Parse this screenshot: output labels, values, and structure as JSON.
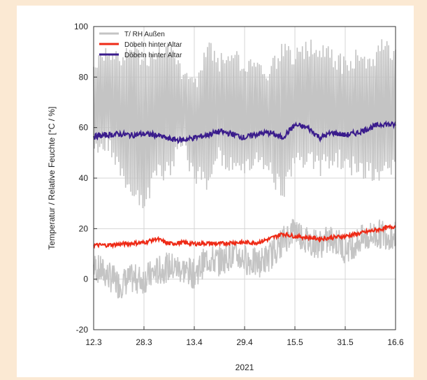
{
  "colors": {
    "background": "#fbe9d3",
    "panel": "#ffffff",
    "outside_series": "#c4c4c4",
    "temperature_series": "#ee2a16",
    "humidity_series": "#3a1c8c",
    "grid": "#d6d6d6"
  },
  "chart_data": {
    "type": "line",
    "title": "",
    "xlabel": "2021",
    "ylabel": "Temperatur / Relative Feuchte [°C / %]",
    "ylim": [
      -20,
      100
    ],
    "yticks": [
      -20,
      0,
      20,
      40,
      60,
      80,
      100
    ],
    "x_tick_labels": [
      "12.3",
      "28.3",
      "13.4",
      "29.4",
      "15.5",
      "31.5",
      "16.6"
    ],
    "x_tick_dates": [
      "2021-03-12",
      "2021-03-28",
      "2021-04-13",
      "2021-04-29",
      "2021-05-15",
      "2021-05-31",
      "2021-06-16"
    ],
    "grid": true,
    "legend_position": "top-left",
    "series": [
      {
        "name": "T/ RH Außen",
        "color": "#c4c4c4",
        "x": [
          "2021-03-12",
          "2021-03-16",
          "2021-03-20",
          "2021-03-24",
          "2021-03-28",
          "2021-04-01",
          "2021-04-05",
          "2021-04-09",
          "2021-04-13",
          "2021-04-17",
          "2021-04-21",
          "2021-04-25",
          "2021-04-29",
          "2021-05-03",
          "2021-05-07",
          "2021-05-11",
          "2021-05-15",
          "2021-05-19",
          "2021-05-23",
          "2021-05-27",
          "2021-05-31",
          "2021-06-04",
          "2021-06-08",
          "2021-06-12",
          "2021-06-16"
        ],
        "y_low": [
          48,
          50,
          42,
          30,
          25,
          38,
          40,
          50,
          38,
          35,
          45,
          40,
          38,
          45,
          40,
          30,
          42,
          45,
          40,
          45,
          42,
          40,
          38,
          38,
          40
        ],
        "y_high": [
          88,
          92,
          90,
          95,
          90,
          92,
          94,
          85,
          80,
          96,
          90,
          92,
          88,
          90,
          85,
          95,
          92,
          96,
          94,
          92,
          88,
          92,
          90,
          96,
          94
        ],
        "y_temp": [
          5,
          2,
          -2,
          0,
          0,
          3,
          5,
          4,
          2,
          8,
          7,
          10,
          8,
          6,
          9,
          15,
          20,
          15,
          14,
          16,
          12,
          15,
          17,
          18,
          17
        ]
      },
      {
        "name": "Döbeln hinter Altar",
        "color": "#ee2a16",
        "x": [
          "2021-03-12",
          "2021-03-16",
          "2021-03-20",
          "2021-03-24",
          "2021-03-28",
          "2021-04-01",
          "2021-04-05",
          "2021-04-09",
          "2021-04-13",
          "2021-04-17",
          "2021-04-21",
          "2021-04-25",
          "2021-04-29",
          "2021-05-03",
          "2021-05-07",
          "2021-05-11",
          "2021-05-15",
          "2021-05-19",
          "2021-05-23",
          "2021-05-27",
          "2021-05-31",
          "2021-06-04",
          "2021-06-08",
          "2021-06-12",
          "2021-06-16"
        ],
        "y": [
          13.5,
          13.5,
          13.8,
          14.2,
          14.5,
          16,
          14,
          14.5,
          14,
          14.2,
          14,
          14.5,
          14.5,
          14.5,
          16,
          18,
          17,
          16.5,
          16,
          16.5,
          17,
          18,
          19,
          20,
          21
        ]
      },
      {
        "name": "Döbeln hinter Altar",
        "color": "#3a1c8c",
        "x": [
          "2021-03-12",
          "2021-03-16",
          "2021-03-20",
          "2021-03-24",
          "2021-03-28",
          "2021-04-01",
          "2021-04-05",
          "2021-04-09",
          "2021-04-13",
          "2021-04-17",
          "2021-04-21",
          "2021-04-25",
          "2021-04-29",
          "2021-05-03",
          "2021-05-07",
          "2021-05-11",
          "2021-05-15",
          "2021-05-19",
          "2021-05-23",
          "2021-05-27",
          "2021-05-31",
          "2021-06-04",
          "2021-06-08",
          "2021-06-12",
          "2021-06-16"
        ],
        "y": [
          56.5,
          57,
          57.5,
          57,
          57.5,
          57,
          55.5,
          55,
          56,
          57,
          58.5,
          57.5,
          56,
          57.5,
          58,
          56,
          61,
          60,
          56,
          58,
          57,
          58,
          60,
          61.5,
          61
        ]
      }
    ]
  }
}
